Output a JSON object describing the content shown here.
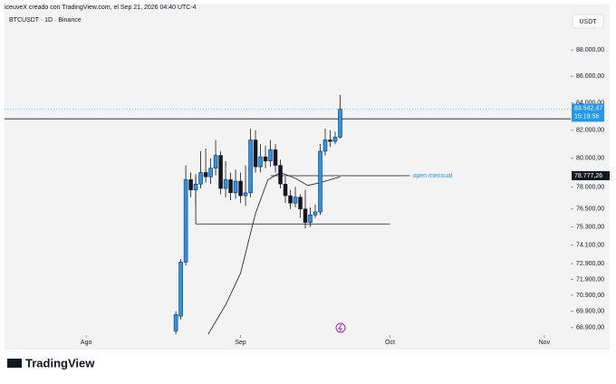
{
  "header": {
    "credit": "iceuveX creado con TradingView.com, el Sep 21, 2026 04:40 UTC-4",
    "logo": "TradingView"
  },
  "chart_data": {
    "type": "candlestick",
    "title": "BTCUSDT · 1D · Binance",
    "currency": "USDT",
    "log_scale": true,
    "ylim": [
      68450,
      91100
    ],
    "yticks": [
      {
        "value": 68900,
        "label": "68.900,00"
      },
      {
        "value": 69900,
        "label": "69.900,00"
      },
      {
        "value": 70900,
        "label": "70.900,00"
      },
      {
        "value": 71900,
        "label": "71.900,00"
      },
      {
        "value": 72900,
        "label": "72.900,00"
      },
      {
        "value": 74100,
        "label": "74.100,00"
      },
      {
        "value": 75300,
        "label": "75.300,00"
      },
      {
        "value": 76500,
        "label": "76.500,00"
      },
      {
        "value": 78000,
        "label": "78.000,00"
      },
      {
        "value": 80000,
        "label": "80.000,00"
      },
      {
        "value": 82000,
        "label": "82.000,00"
      },
      {
        "value": 84000,
        "label": "84.000,00"
      },
      {
        "value": 86000,
        "label": "86.000,00"
      },
      {
        "value": 88000,
        "label": "88.000,00"
      }
    ],
    "xlim": [
      -16.4,
      97.3
    ],
    "xticks": [
      {
        "value": 0,
        "label": "Ago"
      },
      {
        "value": 31,
        "label": "Sep"
      },
      {
        "value": 61,
        "label": "Oct"
      },
      {
        "value": 92,
        "label": "Nov"
      }
    ],
    "up_color": "#2196f3",
    "down_color": "#131722",
    "x": [
      18,
      19,
      20,
      21,
      22,
      23,
      24,
      25,
      26,
      27,
      28,
      29,
      30,
      31,
      32,
      33,
      34,
      35,
      36,
      37,
      38,
      39,
      40,
      41,
      42,
      43,
      44,
      45,
      46,
      47,
      48,
      49,
      50,
      51
    ],
    "open": [
      68700,
      69600,
      73000,
      78500,
      77800,
      78200,
      79000,
      78700,
      79300,
      80200,
      77900,
      78500,
      77600,
      78400,
      77400,
      77600,
      81300,
      79400,
      80100,
      79800,
      80600,
      79500,
      78200,
      77400,
      76900,
      77300,
      76500,
      75600,
      76100,
      76300,
      80500,
      81300,
      81200,
      81500
    ],
    "high": [
      69900,
      73200,
      79500,
      79000,
      78900,
      80500,
      80700,
      80000,
      81300,
      80500,
      79800,
      79000,
      79200,
      79000,
      79500,
      82100,
      82000,
      81000,
      80900,
      81300,
      81000,
      79900,
      78700,
      77800,
      78000,
      77500,
      77800,
      76600,
      76800,
      81000,
      82100,
      82000,
      81900,
      84600
    ],
    "low": [
      68500,
      69400,
      72800,
      77300,
      76800,
      77900,
      78300,
      78200,
      78800,
      77500,
      77300,
      77100,
      77200,
      76900,
      76700,
      77300,
      79000,
      79000,
      79300,
      79400,
      79000,
      77900,
      76900,
      76500,
      76600,
      75900,
      75200,
      75300,
      75900,
      76100,
      80200,
      80800,
      81000,
      81400
    ],
    "close": [
      69700,
      73000,
      78500,
      77800,
      78200,
      79000,
      78700,
      79300,
      80200,
      77900,
      78500,
      77600,
      78400,
      77400,
      77600,
      81300,
      79400,
      80100,
      79800,
      80600,
      79500,
      78200,
      77400,
      76900,
      77300,
      76500,
      75600,
      76100,
      76300,
      80500,
      81300,
      81200,
      81500,
      83542.47
    ],
    "last_price": {
      "value": 83542.47,
      "label": "83.542,47",
      "countdown": "15:19:56"
    },
    "drawn_line": 82830,
    "open_mensual": {
      "value": 78777.26,
      "label": "78.777,26",
      "text": "open mensual",
      "x": [
        37,
        65
      ]
    },
    "range_line": {
      "value": 75500,
      "top": 78700,
      "x": [
        22,
        61
      ]
    },
    "ma": {
      "x": [
        24.5,
        28,
        31,
        34,
        36.5,
        39,
        42,
        44.5,
        47,
        51
      ],
      "values": [
        68500,
        70300,
        72300,
        76200,
        78500,
        79000,
        78600,
        78100,
        78300,
        78700
      ]
    }
  }
}
